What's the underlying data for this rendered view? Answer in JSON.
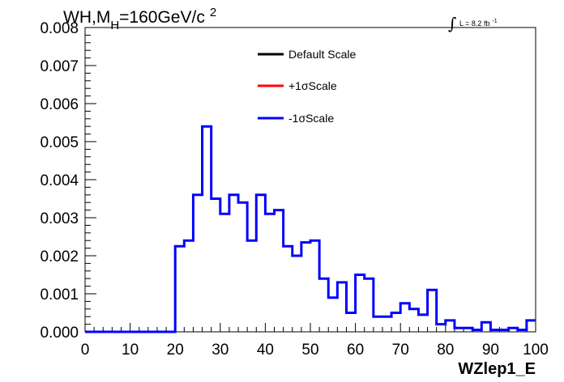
{
  "chart_data": {
    "type": "histogram",
    "title_parts": {
      "main": "WH,M",
      "sub": "H",
      "rest": "=160GeV/c",
      "sup": "2"
    },
    "lumi": {
      "integral": "∫",
      "text": "L = 8.2 fb",
      "sup": "-1"
    },
    "xlabel": "WZlep1_E",
    "ylabel": "",
    "xlim": [
      0,
      100
    ],
    "ylim": [
      0,
      0.008
    ],
    "x_ticks": [
      "0",
      "10",
      "20",
      "30",
      "40",
      "50",
      "60",
      "70",
      "80",
      "90",
      "100"
    ],
    "y_ticks": [
      "0.000",
      "0.001",
      "0.002",
      "0.003",
      "0.004",
      "0.005",
      "0.006",
      "0.007",
      "0.008"
    ],
    "bin_width": 2,
    "legend": [
      {
        "label": "Default Scale",
        "color": "#000000"
      },
      {
        "label": "+1σScale",
        "color": "#ff0000"
      },
      {
        "label": "-1σScale",
        "color": "#0000ff"
      }
    ],
    "legend_position": "top-center",
    "series": [
      {
        "name": "-1σScale",
        "color": "#0000ff",
        "bin_edges_start": 0,
        "values": [
          0,
          0,
          0,
          0,
          0,
          0,
          0,
          0,
          0,
          0,
          0.00225,
          0.0024,
          0.0036,
          0.0054,
          0.0035,
          0.0031,
          0.0036,
          0.0034,
          0.0024,
          0.0036,
          0.0031,
          0.0032,
          0.00225,
          0.002,
          0.00235,
          0.0024,
          0.0014,
          0.0009,
          0.0013,
          0.0005,
          0.0015,
          0.0014,
          0.0004,
          0.0004,
          0.0005,
          0.00075,
          0.0006,
          0.00045,
          0.0011,
          0.0002,
          0.0003,
          0.0001,
          0.0001,
          5e-05,
          0.00025,
          5e-05,
          5e-05,
          0.0001,
          5e-05,
          0.0003
        ]
      }
    ]
  }
}
